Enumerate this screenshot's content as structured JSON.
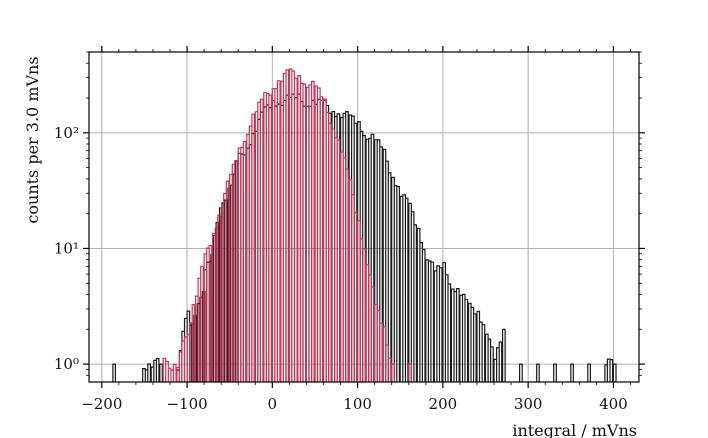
{
  "chart_data": {
    "type": "histogram",
    "xlabel": "integral / mVns",
    "ylabel": "counts per 3.0 mVns",
    "xlim": [
      -215,
      430
    ],
    "ylim": [
      0.7,
      500
    ],
    "yscale": "log",
    "grid": true,
    "xticks": [
      -200,
      -100,
      0,
      100,
      200,
      300,
      400
    ],
    "xtick_labels": [
      "−200",
      "−100",
      "0",
      "100",
      "200",
      "300",
      "400"
    ],
    "yticks": [
      1,
      10,
      100
    ],
    "ytick_labels": [
      "10⁰",
      "10¹",
      "10²"
    ],
    "series": [
      {
        "color": "#1a1a1a",
        "points": [
          [
            -187,
            1
          ],
          [
            -152,
            1
          ],
          [
            -142,
            1
          ],
          [
            -132,
            1
          ],
          [
            -112,
            1
          ],
          [
            -100,
            3
          ],
          [
            -95,
            2
          ],
          [
            -88,
            3
          ],
          [
            -80,
            6
          ],
          [
            -72,
            9
          ],
          [
            -62,
            20
          ],
          [
            -52,
            35
          ],
          [
            -40,
            60
          ],
          [
            -30,
            80
          ],
          [
            -20,
            110
          ],
          [
            -10,
            150
          ],
          [
            0,
            190
          ],
          [
            10,
            195
          ],
          [
            20,
            190
          ],
          [
            30,
            200
          ],
          [
            40,
            190
          ],
          [
            50,
            180
          ],
          [
            60,
            170
          ],
          [
            70,
            160
          ],
          [
            80,
            150
          ],
          [
            90,
            130
          ],
          [
            100,
            120
          ],
          [
            110,
            100
          ],
          [
            120,
            85
          ],
          [
            130,
            65
          ],
          [
            140,
            45
          ],
          [
            150,
            30
          ],
          [
            160,
            22
          ],
          [
            170,
            15
          ],
          [
            180,
            9
          ],
          [
            190,
            6
          ],
          [
            200,
            7
          ],
          [
            210,
            5
          ],
          [
            220,
            4
          ],
          [
            230,
            3
          ],
          [
            240,
            3
          ],
          [
            250,
            2
          ],
          [
            260,
            1
          ],
          [
            270,
            2
          ],
          [
            290,
            1
          ],
          [
            310,
            1
          ],
          [
            330,
            1
          ],
          [
            350,
            1
          ],
          [
            370,
            1
          ],
          [
            390,
            1
          ],
          [
            400,
            1
          ]
        ]
      },
      {
        "color": "#cc3355",
        "points": [
          [
            -128,
            1
          ],
          [
            -122,
            1
          ],
          [
            -112,
            1
          ],
          [
            -100,
            2
          ],
          [
            -90,
            4
          ],
          [
            -80,
            8
          ],
          [
            -70,
            14
          ],
          [
            -60,
            25
          ],
          [
            -50,
            40
          ],
          [
            -40,
            70
          ],
          [
            -30,
            110
          ],
          [
            -20,
            150
          ],
          [
            -10,
            200
          ],
          [
            0,
            260
          ],
          [
            10,
            300
          ],
          [
            20,
            320
          ],
          [
            30,
            310
          ],
          [
            40,
            280
          ],
          [
            50,
            240
          ],
          [
            60,
            180
          ],
          [
            70,
            120
          ],
          [
            80,
            70
          ],
          [
            90,
            35
          ],
          [
            100,
            18
          ],
          [
            110,
            8
          ],
          [
            120,
            3
          ],
          [
            130,
            2
          ],
          [
            140,
            1
          ],
          [
            160,
            1
          ]
        ]
      }
    ]
  }
}
